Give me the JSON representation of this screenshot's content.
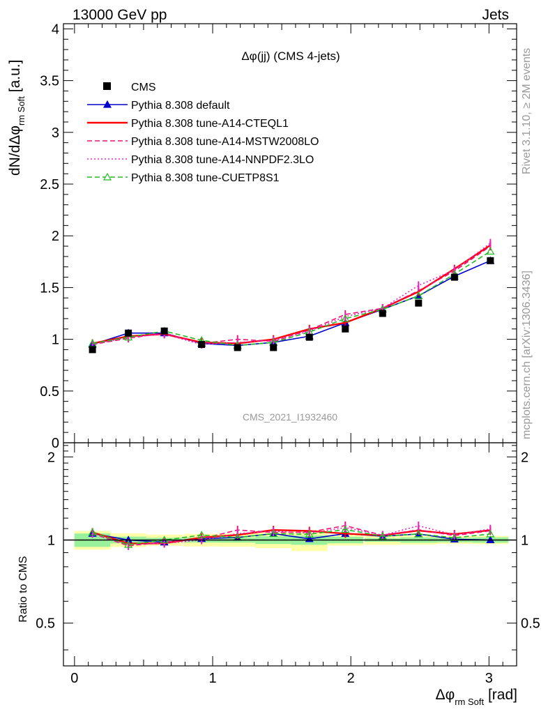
{
  "header": {
    "energy": "13000 GeV pp",
    "category": "Jets"
  },
  "side": {
    "rivet": "Rivet 3.1.10, ≥ 2M events",
    "mcplots": "mcplots.cern.ch [arXiv:1306.3436]"
  },
  "chart_data": {
    "type": "line",
    "title": "Δφ(jj) (CMS 4-jets)",
    "watermark": "CMS_2021_I1932460",
    "ylabel": "dN/dΔφ",
    "ylabel_sub": "rm Soft",
    "ylabel_unit": "[a.u.]",
    "xlabel": "Δφ",
    "xlabel_sub": "rm Soft",
    "xlabel_unit": "[rad]",
    "ratio_ylabel": "Ratio to CMS",
    "xlim": [
      -0.08,
      3.2
    ],
    "ylim": [
      0,
      4.05
    ],
    "ratio_ylim": [
      0.35,
      2.25
    ],
    "x_ticks": [
      "0",
      "1",
      "2",
      "3"
    ],
    "y_ticks": [
      "0",
      "0.5",
      "1",
      "1.5",
      "2",
      "2.5",
      "3",
      "3.5",
      "4"
    ],
    "ratio_ticks": [
      "0.5",
      "1",
      "2"
    ],
    "legend_position": "top-left",
    "x": [
      0.13,
      0.39,
      0.65,
      0.92,
      1.18,
      1.44,
      1.7,
      1.96,
      2.23,
      2.49,
      2.75,
      3.01
    ],
    "data": {
      "name": "CMS",
      "values": [
        0.9,
        1.06,
        1.08,
        0.95,
        0.92,
        0.92,
        1.02,
        1.1,
        1.25,
        1.35,
        1.6,
        1.76
      ],
      "stat_band": [
        0.05,
        0.03,
        0.02,
        0.02,
        0.02,
        0.03,
        0.04,
        0.03,
        0.02,
        0.03,
        0.03,
        0.04
      ],
      "total_band": [
        0.07,
        0.06,
        0.05,
        0.05,
        0.05,
        0.06,
        0.09,
        0.05,
        0.05,
        0.05,
        0.05,
        0.06
      ]
    },
    "series": [
      {
        "name": "Pythia 8.308 default",
        "color": "#0000cc",
        "dash": "solid",
        "marker": "triangle-filled",
        "values": [
          0.95,
          1.06,
          1.06,
          0.96,
          0.94,
          0.97,
          1.03,
          1.16,
          1.29,
          1.42,
          1.61,
          1.76
        ]
      },
      {
        "name": "Pythia 8.308 tune-A14-CTEQL1",
        "color": "#ff0000",
        "dash": "solid",
        "marker": "none",
        "values": [
          0.96,
          1.03,
          1.05,
          0.97,
          0.96,
          1.0,
          1.1,
          1.16,
          1.3,
          1.46,
          1.68,
          1.91
        ]
      },
      {
        "name": "Pythia 8.308 tune-A14-MSTW2008LO",
        "color": "#ee1177",
        "dash": "dash",
        "marker": "none",
        "values": [
          0.95,
          1.01,
          1.06,
          0.96,
          1.0,
          0.98,
          1.09,
          1.24,
          1.3,
          1.47,
          1.66,
          1.9
        ]
      },
      {
        "name": "Pythia 8.308 tune-A14-NNPDF2.3LO",
        "color": "#ee22cc",
        "dash": "dot",
        "marker": "none",
        "values": [
          0.95,
          1.02,
          1.05,
          0.95,
          0.97,
          0.99,
          1.08,
          1.22,
          1.3,
          1.52,
          1.67,
          1.93
        ]
      },
      {
        "name": "Pythia 8.308 tune-CUETP8S1",
        "color": "#22bb22",
        "dash": "dash",
        "marker": "triangle-open",
        "values": [
          0.96,
          1.02,
          1.08,
          0.99,
          0.94,
          0.97,
          1.07,
          1.2,
          1.29,
          1.42,
          1.63,
          1.85
        ]
      }
    ]
  }
}
